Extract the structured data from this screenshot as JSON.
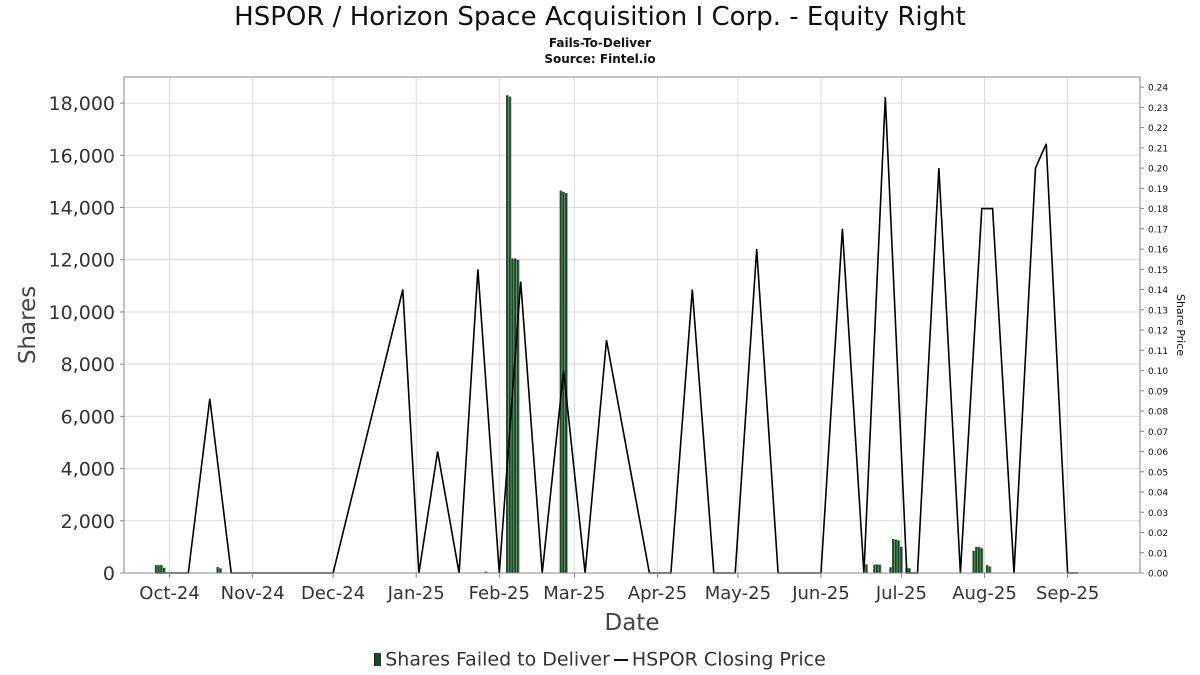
{
  "chart_data": {
    "type": "bar+line",
    "title": "HSPOR / Horizon Space Acquisition I Corp. - Equity Right",
    "subtitle": "Fails-To-Deliver",
    "source": "Source: Fintel.io",
    "xlabel": "Date",
    "ylabel": "Shares",
    "y2label": "Share Price",
    "ylim": [
      0,
      19000
    ],
    "y2lim": [
      0,
      0.245
    ],
    "yticks": [
      "0",
      "2,000",
      "4,000",
      "6,000",
      "8,000",
      "10,000",
      "12,000",
      "14,000",
      "16,000",
      "18,000"
    ],
    "ytick_values": [
      0,
      2000,
      4000,
      6000,
      8000,
      10000,
      12000,
      14000,
      16000,
      18000
    ],
    "y2ticks": [
      "0.00",
      "0.01",
      "0.02",
      "0.03",
      "0.04",
      "0.05",
      "0.06",
      "0.07",
      "0.08",
      "0.09",
      "0.10",
      "0.11",
      "0.12",
      "0.13",
      "0.14",
      "0.15",
      "0.16",
      "0.17",
      "0.18",
      "0.19",
      "0.20",
      "0.21",
      "0.22",
      "0.23",
      "0.24"
    ],
    "xlim": [
      "2024-09-14",
      "2025-09-28"
    ],
    "xticks": [
      {
        "label": "Oct-24",
        "date": "2024-10-01"
      },
      {
        "label": "Nov-24",
        "date": "2024-11-01"
      },
      {
        "label": "Dec-24",
        "date": "2024-12-01"
      },
      {
        "label": "Jan-25",
        "date": "2025-01-01"
      },
      {
        "label": "Feb-25",
        "date": "2025-02-01"
      },
      {
        "label": "Mar-25",
        "date": "2025-03-01"
      },
      {
        "label": "Apr-25",
        "date": "2025-04-01"
      },
      {
        "label": "May-25",
        "date": "2025-05-01"
      },
      {
        "label": "Jun-25",
        "date": "2025-06-01"
      },
      {
        "label": "Jul-25",
        "date": "2025-07-01"
      },
      {
        "label": "Aug-25",
        "date": "2025-08-01"
      },
      {
        "label": "Sep-25",
        "date": "2025-09-01"
      }
    ],
    "grid": true,
    "legend_position": "bottom-center",
    "series": [
      {
        "name": "Shares Failed to Deliver",
        "type": "bar",
        "color": "#1a4a25",
        "points": [
          {
            "x": "2024-09-26",
            "y": 300
          },
          {
            "x": "2024-09-27",
            "y": 300
          },
          {
            "x": "2024-09-28",
            "y": 300
          },
          {
            "x": "2024-09-29",
            "y": 200
          },
          {
            "x": "2024-10-19",
            "y": 230
          },
          {
            "x": "2024-10-20",
            "y": 180
          },
          {
            "x": "2025-01-27",
            "y": 50
          },
          {
            "x": "2025-02-04",
            "y": 18300
          },
          {
            "x": "2025-02-05",
            "y": 18250
          },
          {
            "x": "2025-02-06",
            "y": 12050
          },
          {
            "x": "2025-02-07",
            "y": 12050
          },
          {
            "x": "2025-02-08",
            "y": 12000
          },
          {
            "x": "2025-02-24",
            "y": 14650
          },
          {
            "x": "2025-02-25",
            "y": 14600
          },
          {
            "x": "2025-02-26",
            "y": 14550
          },
          {
            "x": "2025-06-18",
            "y": 330
          },
          {
            "x": "2025-06-21",
            "y": 320
          },
          {
            "x": "2025-06-22",
            "y": 330
          },
          {
            "x": "2025-06-23",
            "y": 320
          },
          {
            "x": "2025-06-27",
            "y": 220
          },
          {
            "x": "2025-06-28",
            "y": 1300
          },
          {
            "x": "2025-06-29",
            "y": 1280
          },
          {
            "x": "2025-06-30",
            "y": 1250
          },
          {
            "x": "2025-07-01",
            "y": 1000
          },
          {
            "x": "2025-07-03",
            "y": 200
          },
          {
            "x": "2025-07-04",
            "y": 180
          },
          {
            "x": "2025-07-28",
            "y": 850
          },
          {
            "x": "2025-07-29",
            "y": 1000
          },
          {
            "x": "2025-07-30",
            "y": 1000
          },
          {
            "x": "2025-07-31",
            "y": 950
          },
          {
            "x": "2025-08-02",
            "y": 300
          },
          {
            "x": "2025-08-03",
            "y": 250
          }
        ]
      },
      {
        "name": "HSPOR Closing Price",
        "type": "line",
        "color": "#000000",
        "points": [
          {
            "x": "2024-09-26",
            "y": 0.0
          },
          {
            "x": "2024-10-08",
            "y": 0.0
          },
          {
            "x": "2024-10-16",
            "y": 0.086
          },
          {
            "x": "2024-10-24",
            "y": 0.0
          },
          {
            "x": "2024-12-01",
            "y": 0.0
          },
          {
            "x": "2024-12-27",
            "y": 0.14
          },
          {
            "x": "2025-01-02",
            "y": 0.0
          },
          {
            "x": "2025-01-09",
            "y": 0.06
          },
          {
            "x": "2025-01-17",
            "y": 0.0
          },
          {
            "x": "2025-01-24",
            "y": 0.15
          },
          {
            "x": "2025-02-01",
            "y": 0.0
          },
          {
            "x": "2025-02-09",
            "y": 0.144
          },
          {
            "x": "2025-02-17",
            "y": 0.0
          },
          {
            "x": "2025-02-25",
            "y": 0.1
          },
          {
            "x": "2025-03-05",
            "y": 0.0
          },
          {
            "x": "2025-03-13",
            "y": 0.115
          },
          {
            "x": "2025-03-29",
            "y": 0.0
          },
          {
            "x": "2025-04-06",
            "y": 0.0
          },
          {
            "x": "2025-04-14",
            "y": 0.14
          },
          {
            "x": "2025-04-22",
            "y": 0.0
          },
          {
            "x": "2025-04-30",
            "y": 0.0
          },
          {
            "x": "2025-05-08",
            "y": 0.16
          },
          {
            "x": "2025-05-16",
            "y": 0.0
          },
          {
            "x": "2025-06-01",
            "y": 0.0
          },
          {
            "x": "2025-06-09",
            "y": 0.17
          },
          {
            "x": "2025-06-17",
            "y": 0.0
          },
          {
            "x": "2025-06-25",
            "y": 0.235
          },
          {
            "x": "2025-07-03",
            "y": 0.0
          },
          {
            "x": "2025-07-07",
            "y": 0.0
          },
          {
            "x": "2025-07-15",
            "y": 0.2
          },
          {
            "x": "2025-07-23",
            "y": 0.0
          },
          {
            "x": "2025-07-31",
            "y": 0.18
          },
          {
            "x": "2025-08-04",
            "y": 0.18
          },
          {
            "x": "2025-08-12",
            "y": 0.0
          },
          {
            "x": "2025-08-20",
            "y": 0.2
          },
          {
            "x": "2025-08-24",
            "y": 0.212
          },
          {
            "x": "2025-09-01",
            "y": 0.0
          },
          {
            "x": "2025-09-05",
            "y": 0.0
          }
        ]
      }
    ]
  },
  "legend": {
    "bar_label": "Shares Failed to Deliver",
    "line_label": "HSPOR Closing Price"
  }
}
